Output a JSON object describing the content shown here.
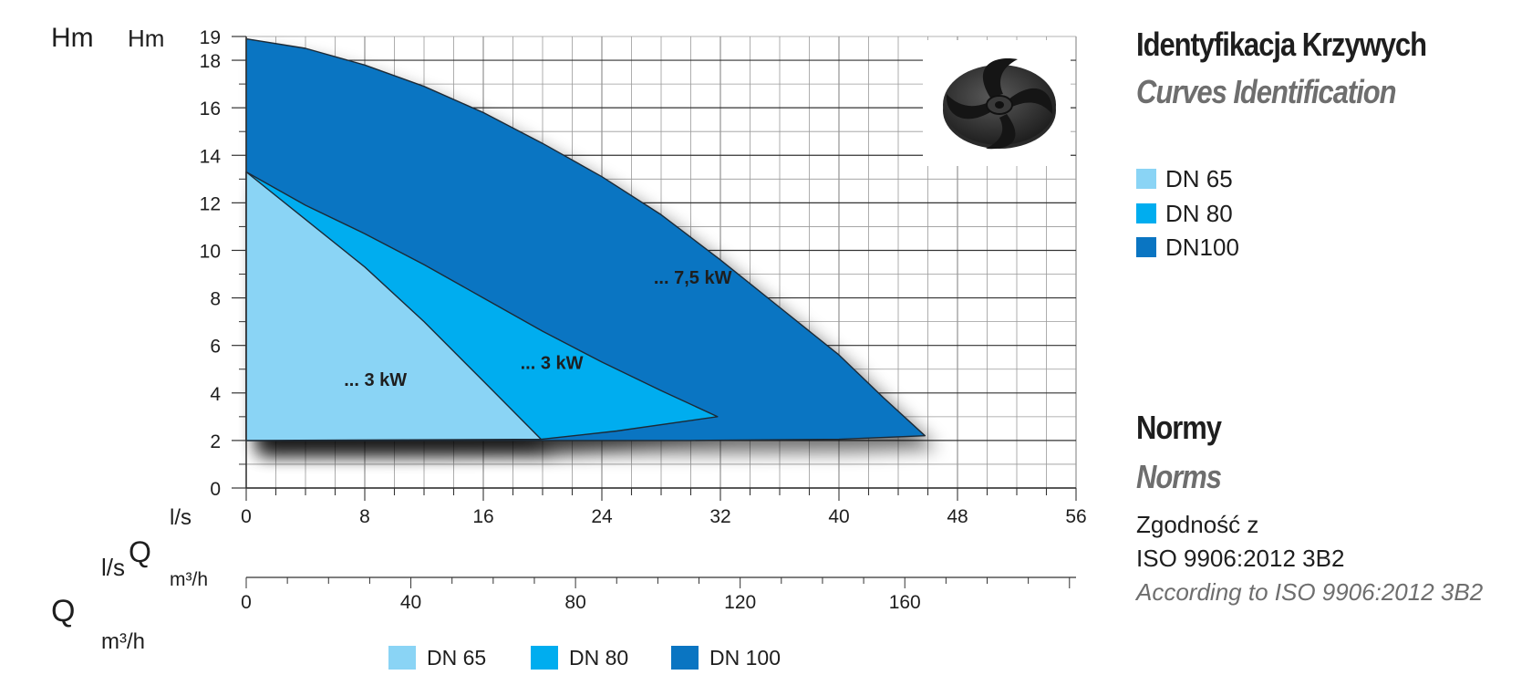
{
  "colors": {
    "dn65": "#8ad4f5",
    "dn80": "#00adef",
    "dn100": "#0a75c2",
    "grid": "#9a9a9a",
    "outline": "#1c2a36"
  },
  "chart_data": {
    "type": "area",
    "x_unit_top": "l/s",
    "x_unit_bottom": "m³/h",
    "xlim": [
      0,
      56
    ],
    "ylim": [
      0,
      19
    ],
    "y_ticks": [
      0,
      2,
      4,
      6,
      8,
      10,
      12,
      14,
      16,
      18,
      19
    ],
    "x_ticks": [
      0,
      8,
      16,
      24,
      32,
      40,
      48,
      56
    ],
    "q_ticks": [
      0,
      40,
      80,
      120,
      160
    ],
    "grid": true,
    "series": [
      {
        "name": "DN100",
        "color_key": "dn100",
        "label": "... 7,5 kW",
        "label_at": [
          27.5,
          8.6
        ],
        "outline": [
          [
            0,
            18.9
          ],
          [
            4,
            18.5
          ],
          [
            8,
            17.8
          ],
          [
            12,
            16.9
          ],
          [
            16,
            15.8
          ],
          [
            20,
            14.5
          ],
          [
            24,
            13.1
          ],
          [
            28,
            11.5
          ],
          [
            32,
            9.6
          ],
          [
            36,
            7.6
          ],
          [
            40,
            5.6
          ],
          [
            43,
            3.8
          ],
          [
            45.8,
            2.2
          ],
          [
            40,
            2.05
          ],
          [
            30,
            2.0
          ],
          [
            20,
            2.0
          ],
          [
            10,
            2.0
          ],
          [
            0,
            2.0
          ]
        ]
      },
      {
        "name": "DN 80",
        "color_key": "dn80",
        "label": "... 3 kW",
        "label_at": [
          18.5,
          5.0
        ],
        "outline": [
          [
            0,
            13.3
          ],
          [
            4,
            11.9
          ],
          [
            8,
            10.7
          ],
          [
            12,
            9.4
          ],
          [
            16,
            8.0
          ],
          [
            20,
            6.6
          ],
          [
            24,
            5.3
          ],
          [
            28,
            4.1
          ],
          [
            31.8,
            3.0
          ],
          [
            25,
            2.4
          ],
          [
            19.9,
            2.05
          ],
          [
            10,
            2.0
          ],
          [
            0,
            2.0
          ]
        ]
      },
      {
        "name": "DN 65",
        "color_key": "dn65",
        "label": "... 3 kW",
        "label_at": [
          6.6,
          4.3
        ],
        "outline": [
          [
            0,
            13.3
          ],
          [
            4,
            11.3
          ],
          [
            8,
            9.3
          ],
          [
            12,
            7.0
          ],
          [
            16,
            4.5
          ],
          [
            19.9,
            2.05
          ],
          [
            0,
            2.0
          ]
        ]
      }
    ]
  },
  "axis_labels": {
    "hm_outer": "Hm",
    "hm_inner": "Hm",
    "ls_inner": "l/s",
    "ls_outer": "l/s",
    "q_outer": "Q",
    "q_inner": "Q",
    "m3h_inner": "m³/h",
    "m3h_outer": "m³/h"
  },
  "side": {
    "title": "Identyfikacja Krzywych",
    "subtitle": "Curves Identification",
    "legend": [
      {
        "label": "DN 65",
        "color_key": "dn65"
      },
      {
        "label": "DN 80",
        "color_key": "dn80"
      },
      {
        "label": "DN100",
        "color_key": "dn100"
      }
    ],
    "norms_title": "Normy",
    "norms_subtitle": "Norms",
    "norm_line1": "Zgodność z",
    "norm_line2": "ISO 9906:2012 3B2",
    "norm_line3": "According to ISO 9906:2012 3B2"
  },
  "bottom_legend": [
    {
      "label": "DN 65",
      "color_key": "dn65"
    },
    {
      "label": "DN 80",
      "color_key": "dn80"
    },
    {
      "label": "DN 100",
      "color_key": "dn100"
    }
  ],
  "impeller_image": "impeller-picture"
}
